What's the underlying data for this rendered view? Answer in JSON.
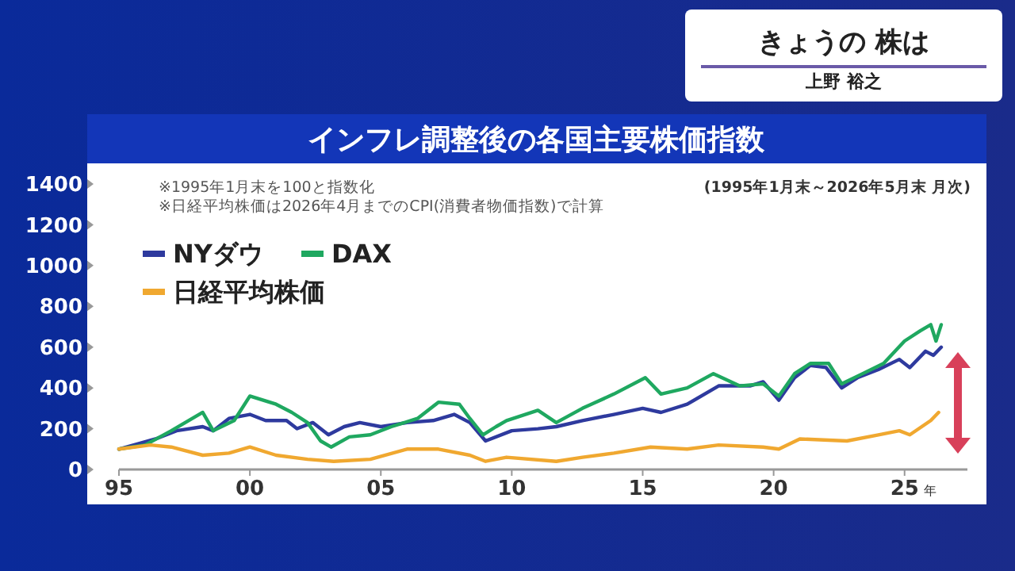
{
  "chart_data": {
    "type": "line",
    "title": "インフレ調整後の各国主要株価指数",
    "xlabel": "年",
    "annotations": [
      "※1995年1月末を100と指数化",
      "※日経平均株価は2026年4月までのCPI(消費者物価指数)で計算",
      "(1995年1月末～2026年5月末 月次)",
      "きょうの 株は",
      "上野 裕之"
    ],
    "xlim": [
      1995,
      2027.4
    ],
    "xticks": [
      {
        "value": 1995,
        "label": "95"
      },
      {
        "value": 2000,
        "label": "00"
      },
      {
        "value": 2005,
        "label": "05"
      },
      {
        "value": 2010,
        "label": "10"
      },
      {
        "value": 2015,
        "label": "15"
      },
      {
        "value": 2020,
        "label": "20"
      },
      {
        "value": 2025,
        "label": "25"
      }
    ],
    "ylim": [
      0,
      1400
    ],
    "yticks": [
      0,
      200,
      400,
      600,
      800,
      1000,
      1200,
      1400
    ],
    "legend": "top left",
    "series": [
      {
        "name": "NYダウ",
        "color": "#2e3a9e",
        "x": [
          1995,
          1996.4,
          1997.2,
          1998.2,
          1998.6,
          1999.2,
          2000,
          2000.6,
          2001.4,
          2001.8,
          2002.4,
          2003,
          2003.6,
          2004.2,
          2005,
          2006,
          2007,
          2007.8,
          2008.4,
          2009,
          2010,
          2011,
          2011.7,
          2012.7,
          2013.9,
          2015,
          2015.7,
          2016.7,
          2017.9,
          2019.1,
          2019.6,
          2020.2,
          2020.8,
          2021.4,
          2022,
          2022.6,
          2023.2,
          2024,
          2024.8,
          2025.2,
          2025.8,
          2026.1,
          2026.4
        ],
        "values": [
          100,
          150,
          190,
          210,
          190,
          250,
          270,
          240,
          240,
          200,
          230,
          170,
          210,
          230,
          210,
          230,
          240,
          270,
          230,
          140,
          190,
          200,
          210,
          240,
          270,
          300,
          280,
          320,
          410,
          410,
          430,
          340,
          450,
          510,
          500,
          400,
          450,
          490,
          540,
          500,
          580,
          560,
          600
        ]
      },
      {
        "name": "DAX",
        "color": "#1fa860",
        "x": [
          1995,
          1996,
          1997,
          1998.2,
          1998.6,
          1999.4,
          2000,
          2001,
          2001.6,
          2002.2,
          2002.7,
          2003.1,
          2003.8,
          2004.6,
          2005.4,
          2006.4,
          2007.2,
          2008,
          2008.4,
          2008.9,
          2009.4,
          2009.8,
          2011,
          2011.7,
          2012.7,
          2013.9,
          2015.1,
          2015.7,
          2016.7,
          2017.7,
          2018.7,
          2019.6,
          2020.2,
          2020.8,
          2021.4,
          2022.1,
          2022.6,
          2023.4,
          2024.2,
          2025,
          2025.6,
          2026,
          2026.2,
          2026.4
        ],
        "values": [
          100,
          120,
          190,
          280,
          190,
          240,
          360,
          320,
          280,
          230,
          140,
          110,
          160,
          170,
          210,
          250,
          330,
          320,
          250,
          170,
          210,
          240,
          290,
          230,
          300,
          370,
          450,
          370,
          400,
          470,
          410,
          420,
          360,
          470,
          520,
          520,
          420,
          470,
          520,
          630,
          680,
          710,
          630,
          710
        ]
      },
      {
        "name": "日経平均株価",
        "color": "#f0a830",
        "x": [
          1995,
          1996.2,
          1997,
          1998.2,
          1999.2,
          2000,
          2001,
          2002.2,
          2003.2,
          2004.6,
          2006,
          2007.2,
          2008.4,
          2009,
          2009.8,
          2011.7,
          2012.7,
          2013.9,
          2015.3,
          2016.7,
          2017.9,
          2019.6,
          2020.2,
          2021,
          2022.8,
          2024,
          2024.8,
          2025.2,
          2026,
          2026.3
        ],
        "values": [
          100,
          120,
          110,
          70,
          80,
          110,
          70,
          50,
          40,
          50,
          100,
          100,
          70,
          40,
          60,
          40,
          60,
          80,
          110,
          100,
          120,
          110,
          100,
          150,
          140,
          170,
          190,
          170,
          240,
          280
        ]
      }
    ]
  }
}
